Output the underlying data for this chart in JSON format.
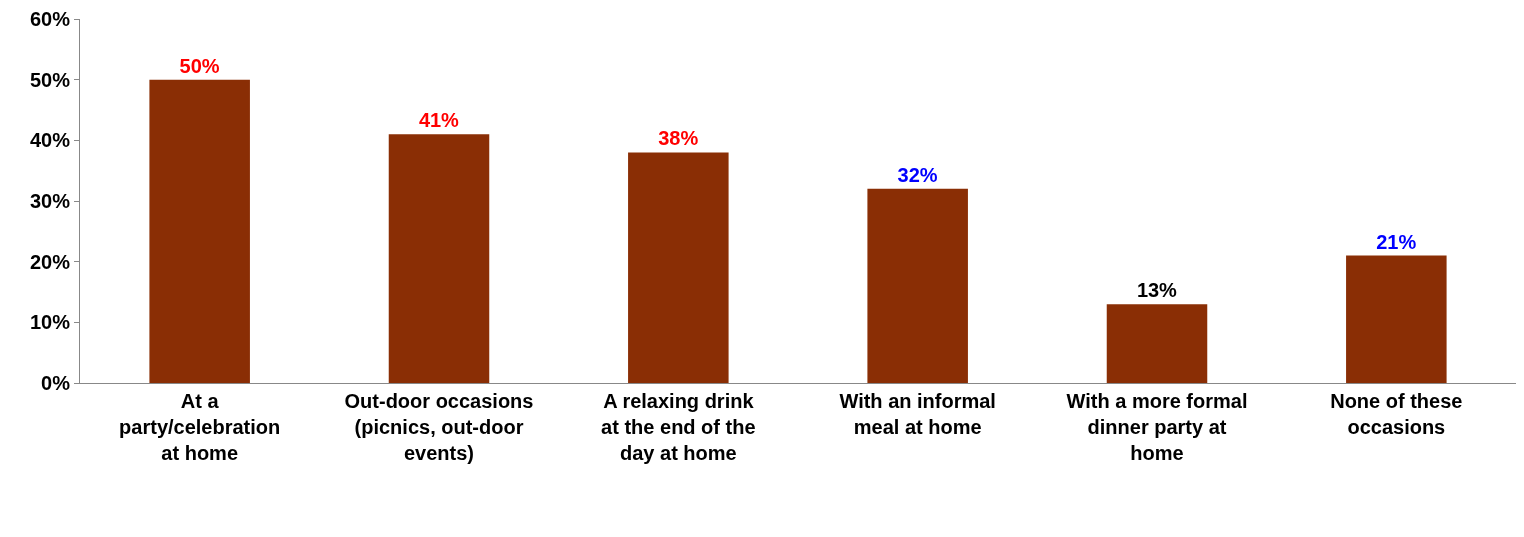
{
  "chart_data": {
    "type": "bar",
    "categories": [
      "At a party/celebration at home",
      "Out-door occasions (picnics, out-door events)",
      "A relaxing drink at the end of the day at home",
      "With an informal meal at home",
      "With a more formal dinner party at home",
      "None of these occasions"
    ],
    "values": [
      50,
      41,
      38,
      32,
      13,
      21
    ],
    "value_labels": [
      "50%",
      "41%",
      "38%",
      "32%",
      "13%",
      "21%"
    ],
    "color": "#8a2e05",
    "ylim": [
      0,
      60
    ],
    "yticks": [
      {
        "value": 0,
        "label": "0%"
      },
      {
        "value": 10,
        "label": "10%"
      },
      {
        "value": 20,
        "label": "20%"
      },
      {
        "value": 30,
        "label": "30%"
      },
      {
        "value": 40,
        "label": "40%"
      },
      {
        "value": 50,
        "label": "50%"
      },
      {
        "value": 60,
        "label": "60%"
      }
    ],
    "legend": false
  }
}
